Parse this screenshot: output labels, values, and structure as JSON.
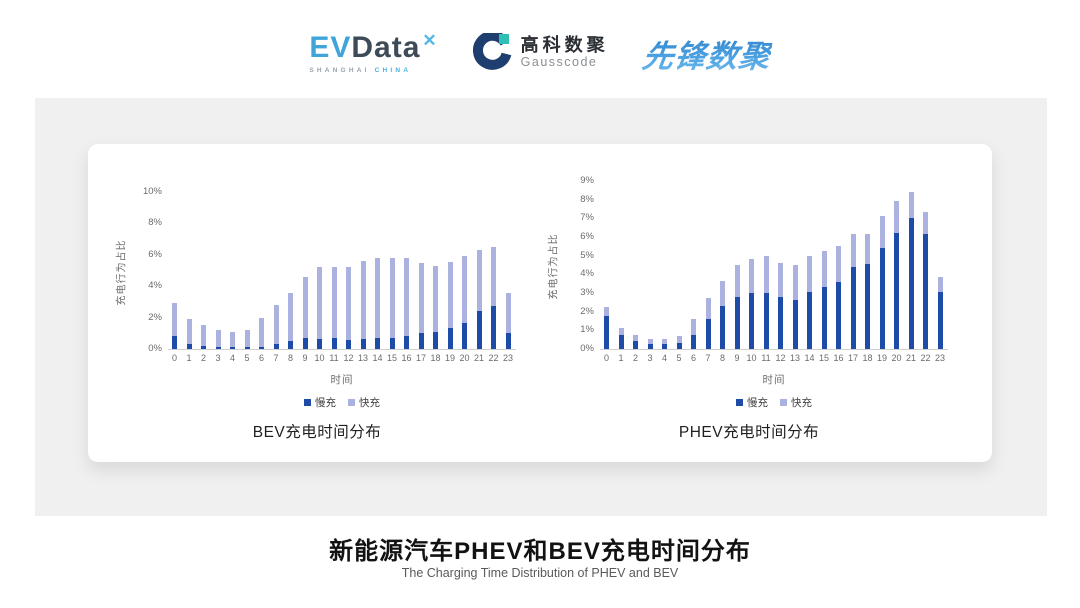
{
  "header": {
    "logos": {
      "evdata": {
        "ev": "EV",
        "data": "Data",
        "star": "✕",
        "sub_left": "SHANGHAI",
        "sub_right": "CHINA"
      },
      "gausscode": {
        "cn": "高科数聚",
        "en": "Gausscode"
      },
      "xianfeng": {
        "text": "先锋数聚"
      }
    }
  },
  "colors": {
    "slow": "#1c4ba8",
    "fast": "#abb2e0",
    "panel": "#f0f0f0"
  },
  "chart_data": [
    {
      "type": "bar",
      "stacked": true,
      "title": "BEV充电时间分布",
      "xlabel": "时间",
      "ylabel": "充电行为占比",
      "categories": [
        "0",
        "1",
        "2",
        "3",
        "4",
        "5",
        "6",
        "7",
        "8",
        "9",
        "10",
        "11",
        "12",
        "13",
        "14",
        "15",
        "16",
        "17",
        "18",
        "19",
        "20",
        "21",
        "22",
        "23"
      ],
      "series": [
        {
          "name": "慢充",
          "color": "#1c4ba8",
          "values": [
            0.8,
            0.35,
            0.2,
            0.15,
            0.1,
            0.1,
            0.15,
            0.35,
            0.5,
            0.7,
            0.65,
            0.7,
            0.6,
            0.65,
            0.7,
            0.7,
            0.85,
            1.0,
            1.1,
            1.35,
            1.65,
            2.4,
            2.75,
            1.0
          ]
        },
        {
          "name": "快充",
          "color": "#abb2e0",
          "values": [
            2.1,
            1.55,
            1.3,
            1.05,
            1.0,
            1.1,
            1.85,
            2.45,
            3.1,
            3.9,
            4.55,
            4.5,
            4.6,
            4.95,
            5.1,
            5.1,
            4.95,
            4.45,
            4.2,
            4.2,
            4.25,
            3.9,
            3.75,
            2.55
          ]
        }
      ],
      "ylim": [
        0,
        10
      ],
      "ytick_step": 2,
      "ytick_suffix": "%",
      "legend_position": "bottom",
      "grid": false
    },
    {
      "type": "bar",
      "stacked": true,
      "title": "PHEV充电时间分布",
      "xlabel": "时间",
      "ylabel": "充电行为占比",
      "categories": [
        "0",
        "1",
        "2",
        "3",
        "4",
        "5",
        "6",
        "7",
        "8",
        "9",
        "10",
        "11",
        "12",
        "13",
        "14",
        "15",
        "16",
        "17",
        "18",
        "19",
        "20",
        "21",
        "22",
        "23"
      ],
      "series": [
        {
          "name": "慢充",
          "color": "#1c4ba8",
          "values": [
            1.75,
            0.75,
            0.45,
            0.25,
            0.25,
            0.3,
            0.75,
            1.6,
            2.3,
            2.8,
            3.0,
            3.0,
            2.8,
            2.65,
            3.05,
            3.3,
            3.6,
            4.4,
            4.55,
            5.4,
            6.2,
            7.0,
            6.15,
            3.05
          ]
        },
        {
          "name": "快充",
          "color": "#abb2e0",
          "values": [
            0.5,
            0.4,
            0.3,
            0.3,
            0.3,
            0.4,
            0.85,
            1.15,
            1.35,
            1.7,
            1.8,
            2.0,
            1.8,
            1.85,
            1.95,
            1.95,
            1.9,
            1.75,
            1.6,
            1.7,
            1.75,
            1.4,
            1.2,
            0.8
          ]
        }
      ],
      "ylim": [
        0,
        9
      ],
      "ytick_step": 1,
      "ytick_suffix": "%",
      "legend_position": "bottom",
      "grid": false
    }
  ],
  "footer": {
    "title": "新能源汽车PHEV和BEV充电时间分布",
    "subtitle": "The Charging Time Distribution of PHEV and BEV"
  }
}
